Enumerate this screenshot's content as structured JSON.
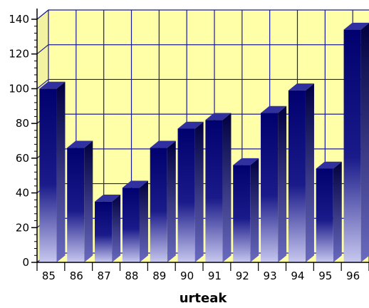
{
  "chart_data": {
    "type": "bar",
    "categories": [
      "85",
      "86",
      "87",
      "88",
      "89",
      "90",
      "91",
      "92",
      "93",
      "94",
      "95",
      "96"
    ],
    "values": [
      100,
      66,
      35,
      43,
      66,
      77,
      82,
      56,
      86,
      99,
      54,
      134
    ],
    "title": "",
    "xlabel": "urteak",
    "ylabel": "",
    "ylim": [
      0,
      140
    ],
    "yticks": [
      0,
      20,
      40,
      60,
      80,
      100,
      120,
      140
    ],
    "ytick_labels": [
      "0",
      "20",
      "40",
      "60",
      "80",
      "100",
      "120",
      "140"
    ],
    "grid": true,
    "style": "3d-bar",
    "colors": {
      "plot_background": "#ffffa8",
      "grid_line": "#1b1b9c",
      "bar_top": "#00006e",
      "bar_bottom": "#c8c8f0",
      "bar_side": "#000040"
    }
  }
}
